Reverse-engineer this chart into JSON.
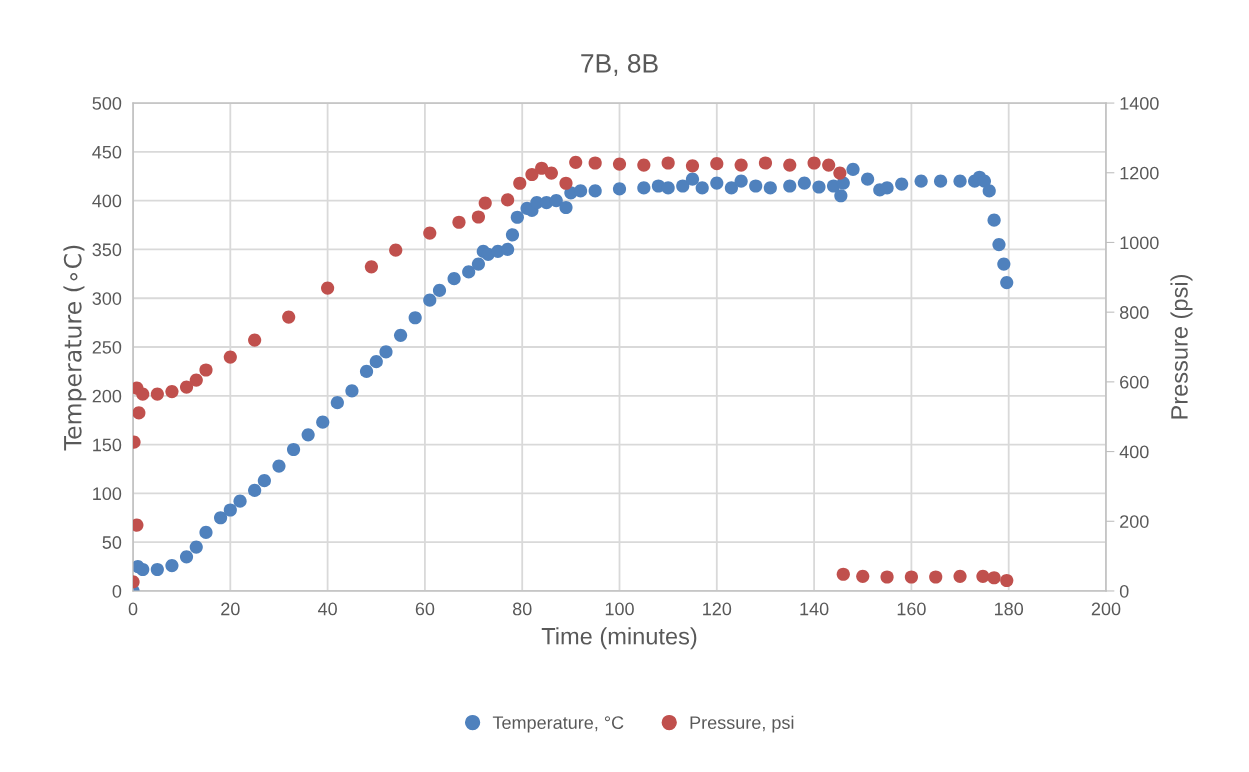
{
  "chart_data": {
    "type": "scatter",
    "title": "7B, 8B",
    "xlabel": "Time (minutes)",
    "ylabel": "Temperature (∘C)",
    "y2label": "Pressure (psi)",
    "xlim": [
      0,
      200
    ],
    "xticks": [
      0,
      20,
      40,
      60,
      80,
      100,
      120,
      140,
      160,
      180,
      200
    ],
    "ylim": [
      0,
      500
    ],
    "yticks": [
      0,
      50,
      100,
      150,
      200,
      250,
      300,
      350,
      400,
      450,
      500
    ],
    "y2lim": [
      0,
      1400
    ],
    "y2ticks": [
      0,
      200,
      400,
      600,
      800,
      1000,
      1200,
      1400
    ],
    "grid": true,
    "legend": "bottom",
    "marker": "circle",
    "series": [
      {
        "name": "Temperature, °C",
        "color": "#4f81bd",
        "x": [
          0,
          1,
          2,
          5,
          8,
          11,
          13,
          15,
          18,
          20,
          22,
          25,
          27,
          30,
          33,
          36,
          39,
          42,
          45,
          48,
          50,
          52,
          55,
          58,
          61,
          63,
          66,
          69,
          71,
          72,
          73,
          75,
          77,
          78,
          79,
          81,
          82,
          83,
          85,
          87,
          89,
          90,
          92,
          95,
          100,
          105,
          108,
          110,
          113,
          115,
          117,
          120,
          123,
          125,
          128,
          131,
          135,
          138,
          141,
          144,
          145.5,
          146,
          148,
          151,
          153.5,
          155,
          158,
          162,
          166,
          170,
          173,
          174,
          175,
          176,
          177,
          178,
          179,
          179.6
        ],
        "values": [
          0,
          25,
          22,
          22,
          26,
          35,
          45,
          60,
          75,
          83,
          92,
          103,
          113,
          128,
          145,
          160,
          173,
          193,
          205,
          225,
          235,
          245,
          262,
          280,
          298,
          308,
          320,
          327,
          335,
          348,
          345,
          348,
          350,
          365,
          383,
          392,
          390,
          398,
          398,
          400,
          393,
          408,
          410,
          410,
          412,
          413,
          415,
          413,
          415,
          422,
          413,
          418,
          413,
          420,
          415,
          413,
          415,
          418,
          414,
          415,
          405,
          418,
          432,
          422,
          411,
          413,
          417,
          420,
          420,
          420,
          420,
          424,
          420,
          410,
          380,
          355,
          335,
          316
        ]
      },
      {
        "name": "Pressure, psi",
        "color": "#c0504d",
        "axis": "y2",
        "x": [
          0,
          0.8,
          0.2,
          1.2,
          0.8,
          2,
          5,
          8,
          11,
          13,
          15,
          20,
          25,
          32,
          40,
          49,
          54,
          61,
          67,
          71,
          72.4,
          77,
          79.5,
          82,
          84,
          86,
          89,
          91,
          95,
          100,
          105,
          110,
          115,
          120,
          125,
          130,
          135,
          140,
          143,
          145.3,
          146,
          150,
          155,
          160,
          165,
          170,
          174.7,
          177,
          179.6
        ],
        "values": [
          26,
          189,
          427,
          511,
          582,
          565,
          565,
          572,
          585,
          605,
          634,
          671,
          720,
          786,
          869,
          930,
          978,
          1027,
          1058,
          1073,
          1113,
          1122,
          1170,
          1195,
          1213,
          1199,
          1170,
          1230,
          1228,
          1225,
          1222,
          1228,
          1220,
          1226,
          1222,
          1228,
          1222,
          1228,
          1222,
          1199,
          48,
          42,
          40,
          40,
          40,
          42,
          42,
          38,
          30
        ]
      }
    ]
  }
}
